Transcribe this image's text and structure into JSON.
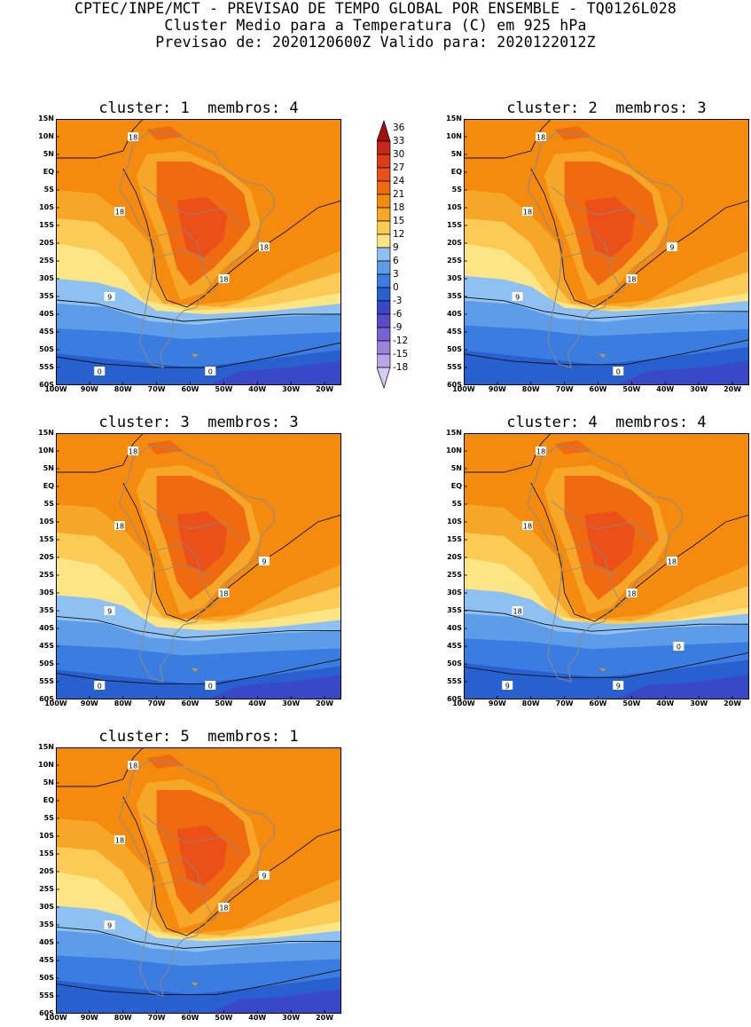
{
  "header": {
    "line1": "CPTEC/INPE/MCT - PREVISAO DE TEMPO GLOBAL POR ENSEMBLE - TQ0126L028",
    "line2": "Cluster Medio para a Temperatura (C) em 925 hPa",
    "line3": "Previsao de: 2020120600Z   Valido para: 2020122012Z"
  },
  "axes": {
    "lat_labels": [
      "15N",
      "10N",
      "5N",
      "EQ",
      "5S",
      "10S",
      "15S",
      "20S",
      "25S",
      "30S",
      "35S",
      "40S",
      "45S",
      "50S",
      "55S",
      "60S"
    ],
    "lon_labels": [
      "100W",
      "90W",
      "80W",
      "70W",
      "60W",
      "50W",
      "40W",
      "30W",
      "20W"
    ]
  },
  "legend": {
    "labels": [
      "36",
      "33",
      "30",
      "27",
      "24",
      "21",
      "18",
      "15",
      "12",
      "9",
      "6",
      "3",
      "0",
      "-3",
      "-6",
      "-9",
      "-12",
      "-15",
      "-18"
    ],
    "colors": [
      "#a50f0f",
      "#c8261a",
      "#dc3c1e",
      "#ea5018",
      "#f06a10",
      "#f58b0e",
      "#f7a728",
      "#fccb55",
      "#fbe585",
      "#8fc0f2",
      "#5c9ce8",
      "#3a7ce0",
      "#2860d0",
      "#3848c8",
      "#5a4cc6",
      "#7862d0",
      "#9a84da",
      "#b8a6e6",
      "#d6ccf2"
    ]
  },
  "panels": [
    {
      "title": "cluster: 1  membros: 4",
      "contour_labels": [
        "18",
        "18",
        "18",
        "18",
        "9",
        "0",
        "0"
      ]
    },
    {
      "title": "cluster: 2  membros: 3",
      "contour_labels": [
        "18",
        "18",
        "18",
        "9",
        "9",
        "0"
      ]
    },
    {
      "title": "cluster: 3  membros: 3",
      "contour_labels": [
        "18",
        "18",
        "18",
        "9",
        "9",
        "0",
        "0"
      ]
    },
    {
      "title": "cluster: 4  membros: 4",
      "contour_labels": [
        "18",
        "18",
        "18",
        "18",
        "18",
        "9",
        "9",
        "0"
      ]
    },
    {
      "title": "cluster: 5  membros: 1",
      "contour_labels": [
        "18",
        "18",
        "18",
        "9",
        "9"
      ]
    }
  ]
}
